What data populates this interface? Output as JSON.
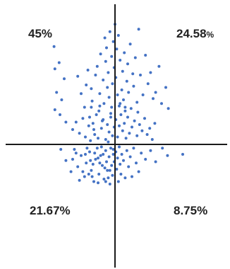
{
  "chart_data": {
    "type": "scatter",
    "title": "",
    "xlabel": "",
    "ylabel": "",
    "xlim": [
      -100,
      100
    ],
    "ylim": [
      -100,
      100
    ],
    "grid": false,
    "axes": "crossing-at-origin",
    "point_color": "#4472C4",
    "axis_color": "#1a1a1a",
    "quadrant_labels": {
      "top_left": "45%",
      "top_right_main": "24.58",
      "top_right_suffix": "%",
      "bottom_left": "21.67%",
      "bottom_right": "8.75%"
    },
    "series": [
      {
        "points": [
          [
            -72,
            79
          ],
          [
            -71,
            61
          ],
          [
            -69,
            42
          ],
          [
            -71,
            28
          ],
          [
            -65,
            24
          ],
          [
            -63,
            36
          ],
          [
            -60,
            53
          ],
          [
            -58,
            18
          ],
          [
            -66,
            66
          ],
          [
            -44,
            55
          ],
          [
            -40,
            41
          ],
          [
            -36,
            30
          ],
          [
            -34,
            48
          ],
          [
            -32,
            60
          ],
          [
            -30,
            22
          ],
          [
            -28,
            45
          ],
          [
            -27,
            35
          ],
          [
            -25,
            12
          ],
          [
            -23,
            56
          ],
          [
            -21,
            63
          ],
          [
            -19,
            27
          ],
          [
            -18,
            41
          ],
          [
            -17,
            73
          ],
          [
            -15,
            19
          ],
          [
            -14,
            52
          ],
          [
            -13,
            33
          ],
          [
            -12,
            86
          ],
          [
            -11,
            67
          ],
          [
            -10,
            78
          ],
          [
            -9,
            46
          ],
          [
            -8,
            58
          ],
          [
            -7,
            38
          ],
          [
            -6,
            91
          ],
          [
            -5,
            25
          ],
          [
            -4,
            71
          ],
          [
            -3,
            49
          ],
          [
            -2,
            83
          ],
          [
            -1,
            62
          ],
          [
            0,
            97
          ],
          [
            1,
            54
          ],
          [
            2,
            77
          ],
          [
            3,
            40
          ],
          [
            4,
            88
          ],
          [
            5,
            31
          ],
          [
            6,
            68
          ],
          [
            8,
            44
          ],
          [
            9,
            59
          ],
          [
            10,
            36
          ],
          [
            11,
            74
          ],
          [
            12,
            27
          ],
          [
            14,
            51
          ],
          [
            15,
            65
          ],
          [
            16,
            42
          ],
          [
            18,
            81
          ],
          [
            19,
            29
          ],
          [
            21,
            57
          ],
          [
            22,
            47
          ],
          [
            24,
            70
          ],
          [
            26,
            34
          ],
          [
            28,
            93
          ],
          [
            30,
            56
          ],
          [
            33,
            40
          ],
          [
            36,
            72
          ],
          [
            39,
            49
          ],
          [
            42,
            58
          ],
          [
            45,
            37
          ],
          [
            48,
            42
          ],
          [
            52,
            63
          ],
          [
            55,
            33
          ],
          [
            60,
            46
          ],
          [
            63,
            29
          ],
          [
            -50,
            12
          ],
          [
            -46,
            18
          ],
          [
            -42,
            9
          ],
          [
            -38,
            21
          ],
          [
            -35,
            6
          ],
          [
            -31,
            15
          ],
          [
            -29,
            3
          ],
          [
            -26,
            17
          ],
          [
            -24,
            8
          ],
          [
            -22,
            24
          ],
          [
            -20,
            5
          ],
          [
            -16,
            13
          ],
          [
            -14,
            20
          ],
          [
            -11,
            4
          ],
          [
            -9,
            16
          ],
          [
            -7,
            10
          ],
          [
            -5,
            22
          ],
          [
            -3,
            7
          ],
          [
            -1,
            14
          ],
          [
            1,
            20
          ],
          [
            3,
            6
          ],
          [
            5,
            15
          ],
          [
            7,
            24
          ],
          [
            9,
            11
          ],
          [
            11,
            17
          ],
          [
            13,
            5
          ],
          [
            15,
            22
          ],
          [
            17,
            9
          ],
          [
            20,
            14
          ],
          [
            23,
            19
          ],
          [
            26,
            7
          ],
          [
            29,
            16
          ],
          [
            32,
            11
          ],
          [
            35,
            21
          ],
          [
            38,
            8
          ],
          [
            41,
            13
          ],
          [
            44,
            4
          ],
          [
            47,
            17
          ],
          [
            27,
            26
          ],
          [
            -28,
            30
          ],
          [
            -18,
            31
          ],
          [
            6,
            33
          ],
          [
            -8,
            2
          ],
          [
            -4,
            30
          ],
          [
            12,
            30
          ],
          [
            -64,
            -4
          ],
          [
            -58,
            -13
          ],
          [
            -50,
            -12
          ],
          [
            -48,
            -4
          ],
          [
            -44,
            -18
          ],
          [
            -40,
            -9
          ],
          [
            -36,
            -26
          ],
          [
            -34,
            -15
          ],
          [
            -30,
            -6
          ],
          [
            -28,
            -21
          ],
          [
            -25,
            -30
          ],
          [
            -23,
            -12
          ],
          [
            -21,
            -3
          ],
          [
            -19,
            -24
          ],
          [
            -17,
            -9
          ],
          [
            -15,
            -17
          ],
          [
            -13,
            -28
          ],
          [
            -11,
            -5
          ],
          [
            -10,
            -14
          ],
          [
            -9,
            -21
          ],
          [
            -7,
            -10
          ],
          [
            -6,
            -32
          ],
          [
            -5,
            -3
          ],
          [
            -4,
            -17
          ],
          [
            -3,
            -25
          ],
          [
            -2,
            -8
          ],
          [
            -1,
            -14
          ],
          [
            -20,
            -11
          ],
          [
            -26,
            -16
          ],
          [
            -33,
            -3
          ],
          [
            -38,
            -22
          ],
          [
            -16,
            -2
          ],
          [
            -12,
            -19
          ],
          [
            -8,
            -27
          ],
          [
            -24,
            -7
          ],
          [
            -29,
            -13
          ],
          [
            -31,
            -24
          ],
          [
            -18,
            -15
          ],
          [
            -14,
            -8
          ],
          [
            -42,
            -29
          ],
          [
            -52,
            -22
          ],
          [
            -46,
            -7
          ],
          [
            -20,
            -31
          ],
          [
            -27,
            -26
          ],
          [
            -35,
            -8
          ],
          [
            -11,
            -30
          ],
          [
            -6,
            -21
          ],
          [
            -2,
            -4
          ],
          [
            1,
            -6
          ],
          [
            2,
            -20
          ],
          [
            3,
            -11
          ],
          [
            4,
            -30
          ],
          [
            5,
            -2
          ],
          [
            6,
            -16
          ],
          [
            7,
            -24
          ],
          [
            8,
            -8
          ],
          [
            10,
            -13
          ],
          [
            12,
            -27
          ],
          [
            14,
            -5
          ],
          [
            16,
            -18
          ],
          [
            18,
            -10
          ],
          [
            20,
            -26
          ],
          [
            22,
            -3
          ],
          [
            25,
            -15
          ],
          [
            28,
            -22
          ],
          [
            31,
            -7
          ],
          [
            36,
            -12
          ],
          [
            42,
            -5
          ],
          [
            48,
            -14
          ],
          [
            56,
            -3
          ],
          [
            62,
            -9
          ],
          [
            80,
            -8
          ]
        ]
      }
    ]
  }
}
